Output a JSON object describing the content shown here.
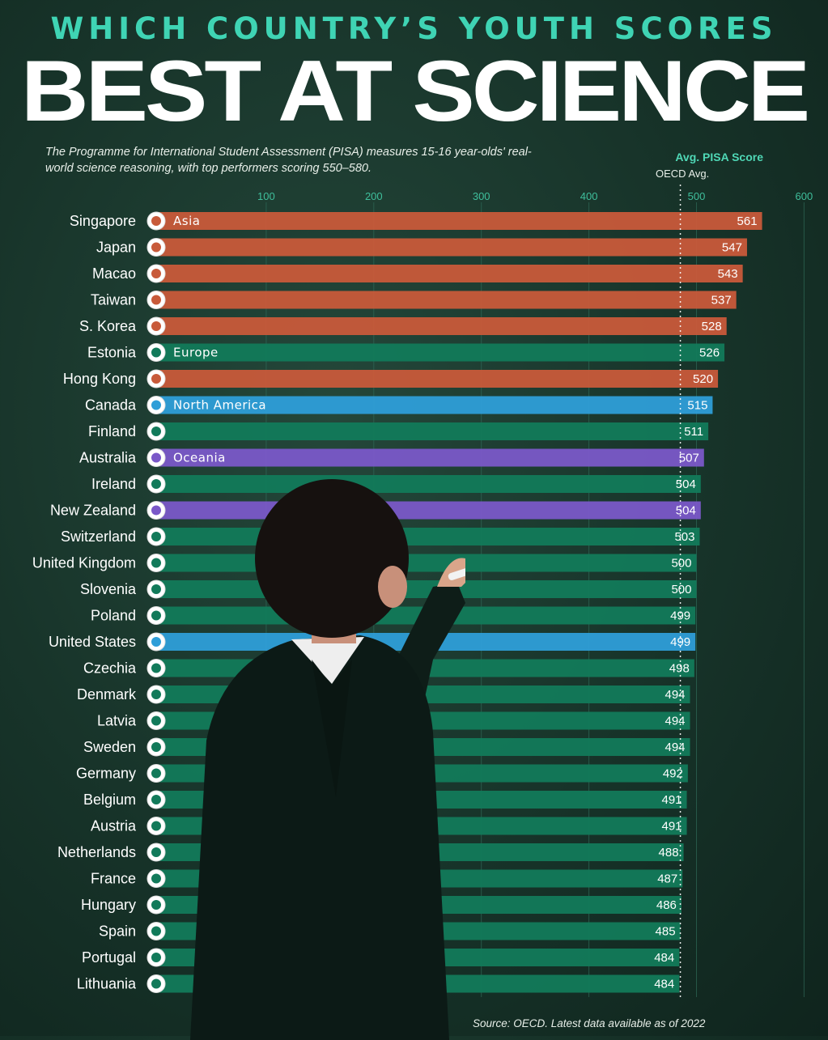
{
  "header": {
    "kicker": "WHICH COUNTRY’S YOUTH SCORES",
    "headline": "BEST AT SCIENCE",
    "subtitle": "The Programme for International Student Assessment (PISA) measures 15-16 year-olds' real-world science reasoning, with top performers scoring 550–580.",
    "legend_score": "Avg. PISA Score",
    "legend_oecd": "OECD Avg."
  },
  "footer": {
    "source": "Source: OECD. Latest data available  as of 2022"
  },
  "colors": {
    "Asia": "#c85a3a",
    "Europe": "#127a5a",
    "North America": "#2e9ed8",
    "Oceania": "#7a58c8"
  },
  "chart_data": {
    "type": "bar",
    "orientation": "horizontal",
    "xlim": [
      0,
      600
    ],
    "ticks": [
      100,
      200,
      300,
      400,
      500,
      600
    ],
    "reference_line": {
      "label": "OECD Avg.",
      "value": 485
    },
    "region_labels": [
      "Asia",
      "Europe",
      "North America",
      "Oceania"
    ],
    "rows": [
      {
        "country": "Singapore",
        "value": 561,
        "region": "Asia",
        "flag": "singapore-flag"
      },
      {
        "country": "Japan",
        "value": 547,
        "region": "Asia",
        "flag": "japan-flag"
      },
      {
        "country": "Macao",
        "value": 543,
        "region": "Asia",
        "flag": "macao-flag"
      },
      {
        "country": "Taiwan",
        "value": 537,
        "region": "Asia",
        "flag": "taiwan-flag"
      },
      {
        "country": "S. Korea",
        "value": 528,
        "region": "Asia",
        "flag": "south-korea-flag"
      },
      {
        "country": "Estonia",
        "value": 526,
        "region": "Europe",
        "flag": "estonia-flag"
      },
      {
        "country": "Hong Kong",
        "value": 520,
        "region": "Asia",
        "flag": "hong-kong-flag"
      },
      {
        "country": "Canada",
        "value": 515,
        "region": "North America",
        "flag": "canada-flag"
      },
      {
        "country": "Finland",
        "value": 511,
        "region": "Europe",
        "flag": "finland-flag"
      },
      {
        "country": "Australia",
        "value": 507,
        "region": "Oceania",
        "flag": "australia-flag"
      },
      {
        "country": "Ireland",
        "value": 504,
        "region": "Europe",
        "flag": "ireland-flag"
      },
      {
        "country": "New Zealand",
        "value": 504,
        "region": "Oceania",
        "flag": "new-zealand-flag"
      },
      {
        "country": "Switzerland",
        "value": 503,
        "region": "Europe",
        "flag": "switzerland-flag"
      },
      {
        "country": "United Kingdom",
        "value": 500,
        "region": "Europe",
        "flag": "united-kingdom-flag"
      },
      {
        "country": "Slovenia",
        "value": 500,
        "region": "Europe",
        "flag": "slovenia-flag"
      },
      {
        "country": "Poland",
        "value": 499,
        "region": "Europe",
        "flag": "poland-flag"
      },
      {
        "country": "United States",
        "value": 499,
        "region": "North America",
        "flag": "united-states-flag"
      },
      {
        "country": "Czechia",
        "value": 498,
        "region": "Europe",
        "flag": "czechia-flag"
      },
      {
        "country": "Denmark",
        "value": 494,
        "region": "Europe",
        "flag": "denmark-flag"
      },
      {
        "country": "Latvia",
        "value": 494,
        "region": "Europe",
        "flag": "latvia-flag"
      },
      {
        "country": "Sweden",
        "value": 494,
        "region": "Europe",
        "flag": "sweden-flag"
      },
      {
        "country": "Germany",
        "value": 492,
        "region": "Europe",
        "flag": "germany-flag"
      },
      {
        "country": "Belgium",
        "value": 491,
        "region": "Europe",
        "flag": "belgium-flag"
      },
      {
        "country": "Austria",
        "value": 491,
        "region": "Europe",
        "flag": "austria-flag"
      },
      {
        "country": "Netherlands",
        "value": 488,
        "region": "Europe",
        "flag": "netherlands-flag"
      },
      {
        "country": "France",
        "value": 487,
        "region": "Europe",
        "flag": "france-flag"
      },
      {
        "country": "Hungary",
        "value": 486,
        "region": "Europe",
        "flag": "hungary-flag"
      },
      {
        "country": "Spain",
        "value": 485,
        "region": "Europe",
        "flag": "spain-flag"
      },
      {
        "country": "Portugal",
        "value": 484,
        "region": "Europe",
        "flag": "portugal-flag"
      },
      {
        "country": "Lithuania",
        "value": 484,
        "region": "Europe",
        "flag": "lithuania-flag"
      }
    ]
  }
}
